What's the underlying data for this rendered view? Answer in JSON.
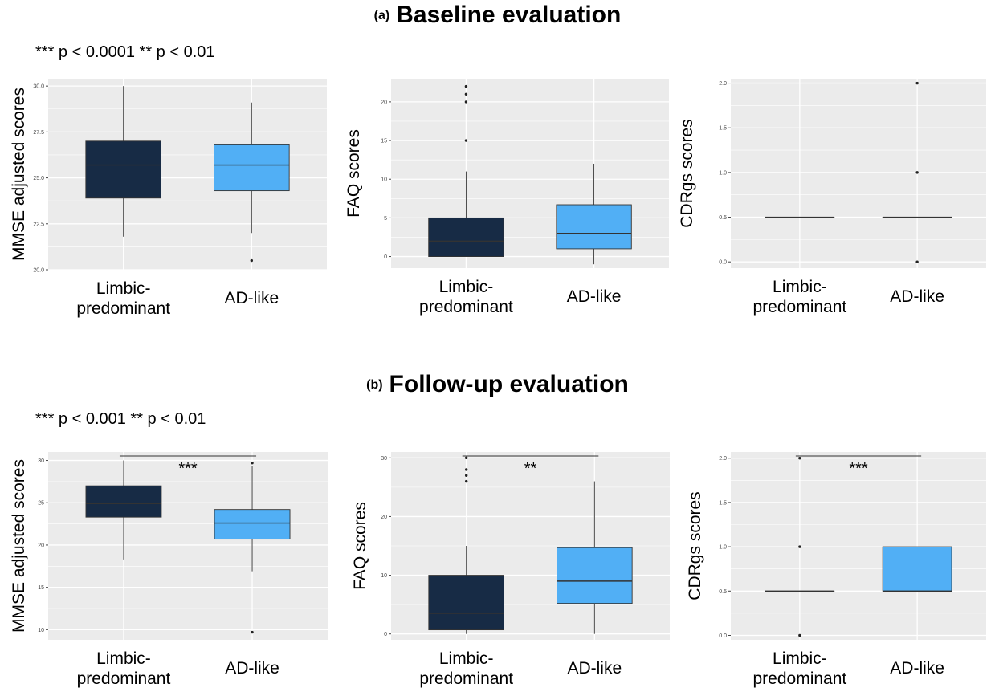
{
  "sections": [
    {
      "tag": "(a)",
      "title": "Baseline evaluation",
      "significance_note": "*** p < 0.0001 ** p < 0.01"
    },
    {
      "tag": "(b)",
      "title": "Follow-up evaluation",
      "significance_note": "*** p < 0.001   ** p < 0.01"
    }
  ],
  "colors": {
    "limbic": "#172b45",
    "adlike": "#51aff5",
    "panel_bg": "#ebebeb",
    "grid": "#ffffff"
  },
  "chart_data": [
    {
      "type": "boxplot",
      "section": "(a)",
      "ylabel": "MMSE adjusted scores",
      "ylim": [
        20,
        30.4
      ],
      "yticks": [
        20,
        22.5,
        25,
        27.5,
        30
      ],
      "ytick_labels": [
        "20.0",
        "22.5",
        "25.0",
        "27.5",
        "30.0"
      ],
      "categories": [
        "Limbic-\npredominant",
        "AD-like"
      ],
      "boxes": [
        {
          "q1": 23.9,
          "median": 25.7,
          "q3": 27.0,
          "whisker_low": 21.8,
          "whisker_high": 30.0,
          "outliers": []
        },
        {
          "q1": 24.3,
          "median": 25.7,
          "q3": 26.8,
          "whisker_low": 22.0,
          "whisker_high": 29.1,
          "outliers": [
            20.5
          ]
        }
      ],
      "significance": ""
    },
    {
      "type": "boxplot",
      "section": "(a)",
      "ylabel": "FAQ scores",
      "ylim": [
        -1.5,
        23
      ],
      "yticks": [
        0,
        5,
        10,
        15,
        20
      ],
      "ytick_labels": [
        "0",
        "5",
        "10",
        "15",
        "20"
      ],
      "categories": [
        "Limbic-\npredominant",
        "AD-like"
      ],
      "boxes": [
        {
          "q1": 0,
          "median": 2,
          "q3": 5,
          "whisker_low": 0,
          "whisker_high": 11,
          "outliers": [
            15,
            20,
            21,
            22
          ]
        },
        {
          "q1": 1,
          "median": 3,
          "q3": 6.7,
          "whisker_low": -1,
          "whisker_high": 12,
          "outliers": []
        }
      ],
      "significance": ""
    },
    {
      "type": "boxplot",
      "section": "(a)",
      "ylabel": "CDRgs scores",
      "ylim": [
        -0.07,
        2.05
      ],
      "yticks": [
        0,
        0.5,
        1,
        1.5,
        2
      ],
      "ytick_labels": [
        "0.0",
        "0.5",
        "1.0",
        "1.5",
        "2.0"
      ],
      "categories": [
        "Limbic-\npredominant",
        "AD-like"
      ],
      "boxes": [
        {
          "q1": 0.5,
          "median": 0.5,
          "q3": 0.5,
          "whisker_low": 0.5,
          "whisker_high": 0.5,
          "outliers": []
        },
        {
          "q1": 0.5,
          "median": 0.5,
          "q3": 0.5,
          "whisker_low": 0.5,
          "whisker_high": 0.5,
          "outliers": [
            0,
            1,
            2
          ]
        }
      ],
      "significance": ""
    },
    {
      "type": "boxplot",
      "section": "(b)",
      "ylabel": "MMSE adjusted scores",
      "ylim": [
        8.8,
        31
      ],
      "yticks": [
        10,
        15,
        20,
        25,
        30
      ],
      "ytick_labels": [
        "10",
        "15",
        "20",
        "25",
        "30"
      ],
      "categories": [
        "Limbic-\npredominant",
        "AD-like"
      ],
      "boxes": [
        {
          "q1": 23.3,
          "median": 24.9,
          "q3": 27.0,
          "whisker_low": 18.3,
          "whisker_high": 30.0,
          "outliers": []
        },
        {
          "q1": 20.7,
          "median": 22.6,
          "q3": 24.2,
          "whisker_low": 16.9,
          "whisker_high": 29.3,
          "outliers": [
            9.7,
            29.7
          ]
        }
      ],
      "significance": "***"
    },
    {
      "type": "boxplot",
      "section": "(b)",
      "ylabel": "FAQ scores",
      "ylim": [
        -1,
        31
      ],
      "yticks": [
        0,
        10,
        20,
        30
      ],
      "ytick_labels": [
        "0",
        "10",
        "20",
        "30"
      ],
      "categories": [
        "Limbic-\npredominant",
        "AD-like"
      ],
      "boxes": [
        {
          "q1": 0.7,
          "median": 3.5,
          "q3": 10,
          "whisker_low": 0,
          "whisker_high": 15,
          "outliers": [
            26,
            27,
            28,
            30
          ]
        },
        {
          "q1": 5.2,
          "median": 9,
          "q3": 14.7,
          "whisker_low": 0,
          "whisker_high": 26,
          "outliers": []
        }
      ],
      "significance": "**"
    },
    {
      "type": "boxplot",
      "section": "(b)",
      "ylabel": "CDRgs scores",
      "ylim": [
        -0.05,
        2.07
      ],
      "yticks": [
        0,
        0.5,
        1,
        1.5,
        2
      ],
      "ytick_labels": [
        "0.0",
        "0.5",
        "1.0",
        "1.5",
        "2.0"
      ],
      "categories": [
        "Limbic-\npredominant",
        "AD-like"
      ],
      "boxes": [
        {
          "q1": 0.5,
          "median": 0.5,
          "q3": 0.5,
          "whisker_low": 0.5,
          "whisker_high": 0.5,
          "outliers": [
            0,
            1,
            2
          ]
        },
        {
          "q1": 0.5,
          "median": 0.5,
          "q3": 1.0,
          "whisker_low": 0.5,
          "whisker_high": 1.0,
          "outliers": []
        }
      ],
      "significance": "***"
    }
  ]
}
